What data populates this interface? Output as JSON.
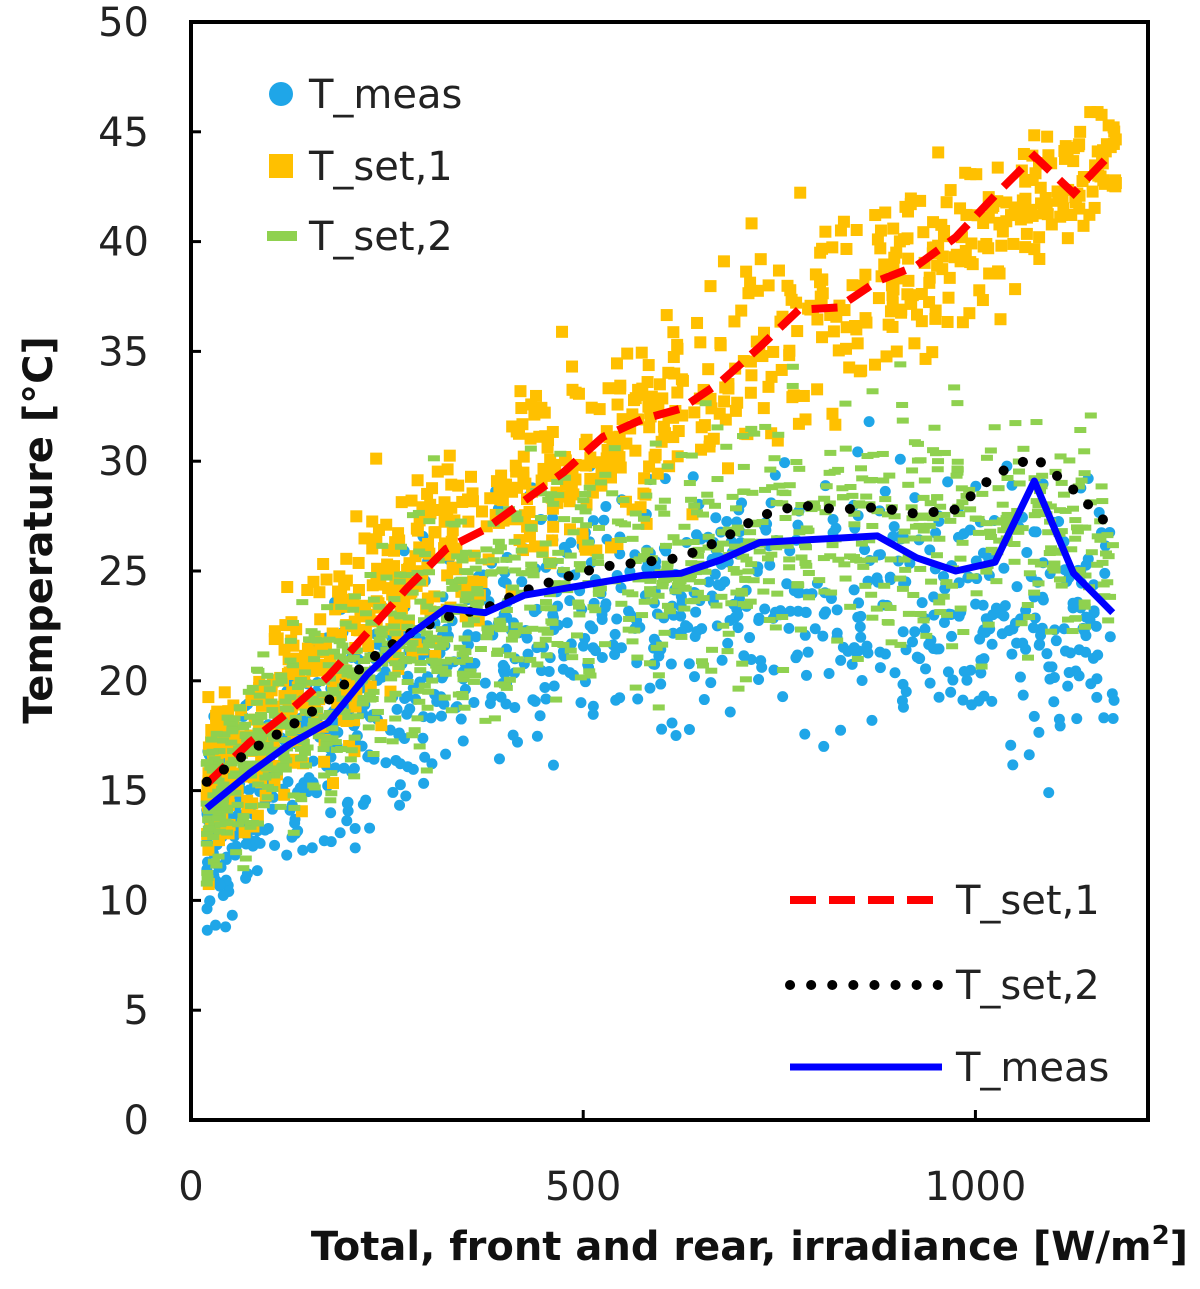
{
  "chart_data": {
    "type": "scatter",
    "title": "",
    "xlabel": "Total, front and rear, irradiance [W/m",
    "xlabel_sup": "2",
    "xlabel_end": "]",
    "ylabel": "Temperature [°C]",
    "xlim": [
      0,
      1220
    ],
    "ylim": [
      0,
      50
    ],
    "xticks": [
      0,
      500,
      1000
    ],
    "yticks": [
      0,
      5,
      10,
      15,
      20,
      25,
      30,
      35,
      40,
      45,
      50
    ],
    "grid": false,
    "colors": {
      "t_meas_points": "#1fa6e8",
      "t_set1_points": "#ffc000",
      "t_set2_points": "#8fd14f",
      "t_set1_line": "#ff0000",
      "t_set2_line": "#000000",
      "t_meas_line": "#0000ff"
    },
    "scatter_legend": {
      "placement": "top-left",
      "entries": [
        "T_meas",
        "T_set,1",
        "T_set,2"
      ]
    },
    "line_legend": {
      "placement": "bottom-right",
      "entries": [
        "T_set,1",
        "T_set,2",
        "T_meas"
      ]
    },
    "scatter_series": [
      {
        "name": "T_meas",
        "trend_x": [
          20,
          100,
          200,
          300,
          400,
          500,
          600,
          700,
          800,
          900,
          1000,
          1100,
          1180
        ],
        "trend_y": [
          13,
          15,
          18,
          20.5,
          22,
          23,
          23.5,
          24,
          24.5,
          24.5,
          24,
          23,
          22
        ],
        "spread": [
          4.5,
          5,
          5.5,
          6,
          6,
          6,
          6,
          6,
          6.5,
          7,
          7,
          7,
          6
        ],
        "x_max": 1180
      },
      {
        "name": "T_set,1",
        "trend_x": [
          20,
          100,
          200,
          300,
          400,
          500,
          600,
          700,
          800,
          900,
          1000,
          1100,
          1180
        ],
        "trend_y": [
          15,
          18,
          22,
          26,
          28,
          30,
          32,
          34,
          36.5,
          38.5,
          40,
          42.5,
          44
        ],
        "spread": [
          4,
          4.5,
          5,
          5,
          5,
          5,
          5,
          5,
          5,
          4.5,
          4,
          3.5,
          3
        ],
        "x_max": 1180
      },
      {
        "name": "T_set,2",
        "trend_x": [
          20,
          100,
          200,
          300,
          400,
          500,
          600,
          700,
          800,
          900,
          1000,
          1100,
          1180
        ],
        "trend_y": [
          14.5,
          17,
          20,
          22.5,
          24,
          25,
          25.5,
          26,
          27,
          27,
          27,
          27,
          26
        ],
        "spread": [
          4,
          4.5,
          5,
          5.5,
          5.5,
          5.5,
          5.5,
          5.5,
          6,
          6,
          6,
          6,
          5
        ],
        "x_max": 1180
      }
    ],
    "line_series": [
      {
        "name": "T_set,1",
        "style": "dashed",
        "x": [
          20,
          75,
          125,
          175,
          225,
          275,
          325,
          375,
          425,
          475,
          525,
          575,
          625,
          675,
          725,
          775,
          825,
          875,
          925,
          975,
          1025,
          1075,
          1125,
          1175
        ],
        "y": [
          15.3,
          17.2,
          18.6,
          20.2,
          22.2,
          24.2,
          26.0,
          26.9,
          28.2,
          29.5,
          31.1,
          31.9,
          32.4,
          33.6,
          35.2,
          36.9,
          37.0,
          38.2,
          38.9,
          40.2,
          42.1,
          43.9,
          42.2,
          44.1
        ]
      },
      {
        "name": "T_set,2",
        "style": "dotted",
        "x": [
          20,
          75,
          125,
          175,
          225,
          275,
          325,
          375,
          425,
          475,
          525,
          575,
          625,
          675,
          725,
          775,
          825,
          875,
          925,
          975,
          1025,
          1075,
          1125,
          1175
        ],
        "y": [
          15.4,
          16.8,
          17.9,
          19.1,
          20.9,
          22.1,
          22.9,
          23.3,
          24.1,
          24.7,
          25.2,
          25.4,
          25.6,
          26.4,
          27.5,
          28.0,
          27.8,
          27.9,
          27.6,
          27.8,
          29.4,
          30.2,
          28.7,
          26.9
        ]
      },
      {
        "name": "T_meas",
        "style": "solid",
        "x": [
          20,
          75,
          125,
          175,
          225,
          275,
          325,
          375,
          425,
          475,
          525,
          575,
          625,
          675,
          725,
          775,
          825,
          875,
          925,
          975,
          1025,
          1075,
          1125,
          1175
        ],
        "y": [
          14.2,
          15.8,
          17.1,
          18.1,
          20.3,
          22.0,
          23.3,
          23.1,
          23.9,
          24.2,
          24.5,
          24.8,
          24.9,
          25.5,
          26.3,
          26.4,
          26.5,
          26.6,
          25.6,
          25.0,
          25.4,
          29.1,
          24.9,
          23.1
        ]
      }
    ]
  }
}
